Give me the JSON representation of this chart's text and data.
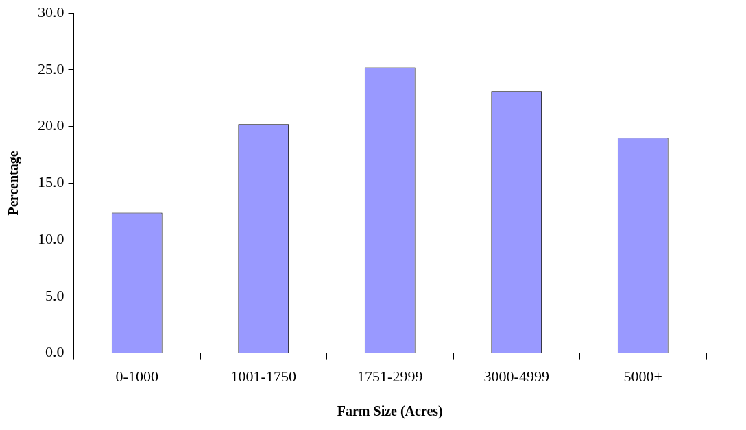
{
  "chart_data": {
    "type": "bar",
    "xlabel": "Farm Size (Acres)",
    "ylabel": "Percentage",
    "categories": [
      "0-1000",
      "1001-1750",
      "1751-2999",
      "3000-4999",
      "5000+"
    ],
    "values": [
      12.4,
      20.2,
      25.2,
      23.1,
      19.0
    ],
    "color": "#9999ff",
    "ylim": [
      0,
      30
    ],
    "yticks": [
      {
        "value": 0,
        "label": "0.0"
      },
      {
        "value": 5,
        "label": "5.0"
      },
      {
        "value": 10,
        "label": "10.0"
      },
      {
        "value": 15,
        "label": "15.0"
      },
      {
        "value": 20,
        "label": "20.0"
      },
      {
        "value": 25,
        "label": "25.0"
      },
      {
        "value": 30,
        "label": "30.0"
      }
    ],
    "grid": false,
    "legend": false
  }
}
